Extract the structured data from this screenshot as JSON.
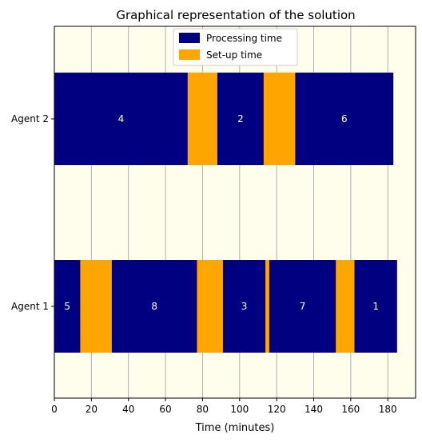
{
  "chart_data": {
    "type": "bar",
    "orientation": "horizontal",
    "title": "Graphical representation of the solution",
    "xlabel": "Time (minutes)",
    "ylabel": "",
    "xlim": [
      0,
      195
    ],
    "xticks": [
      0,
      20,
      40,
      60,
      80,
      100,
      120,
      140,
      160,
      180
    ],
    "categories": [
      "Agent 2",
      "Agent 1"
    ],
    "grid": "vertical",
    "legend_position": "top-center",
    "background_color": "#fffdeb",
    "series": [
      {
        "name": "Processing time",
        "color": "#000080"
      },
      {
        "name": "Set-up time",
        "color": "#ffa500"
      }
    ],
    "segments": [
      {
        "agent": "Agent 2",
        "type": "processing",
        "start": 0,
        "end": 72,
        "label": "4"
      },
      {
        "agent": "Agent 2",
        "type": "setup",
        "start": 72,
        "end": 88,
        "label": ""
      },
      {
        "agent": "Agent 2",
        "type": "processing",
        "start": 88,
        "end": 113,
        "label": "2"
      },
      {
        "agent": "Agent 2",
        "type": "setup",
        "start": 113,
        "end": 130,
        "label": ""
      },
      {
        "agent": "Agent 2",
        "type": "processing",
        "start": 130,
        "end": 183,
        "label": "6"
      },
      {
        "agent": "Agent 1",
        "type": "processing",
        "start": 0,
        "end": 14,
        "label": "5"
      },
      {
        "agent": "Agent 1",
        "type": "setup",
        "start": 14,
        "end": 31,
        "label": ""
      },
      {
        "agent": "Agent 1",
        "type": "processing",
        "start": 31,
        "end": 77,
        "label": "8"
      },
      {
        "agent": "Agent 1",
        "type": "setup",
        "start": 77,
        "end": 91,
        "label": ""
      },
      {
        "agent": "Agent 1",
        "type": "processing",
        "start": 91,
        "end": 114,
        "label": "3"
      },
      {
        "agent": "Agent 1",
        "type": "setup",
        "start": 114,
        "end": 116,
        "label": ""
      },
      {
        "agent": "Agent 1",
        "type": "processing",
        "start": 116,
        "end": 152,
        "label": "7"
      },
      {
        "agent": "Agent 1",
        "type": "setup",
        "start": 152,
        "end": 162,
        "label": ""
      },
      {
        "agent": "Agent 1",
        "type": "processing",
        "start": 162,
        "end": 185,
        "label": "1"
      }
    ]
  }
}
